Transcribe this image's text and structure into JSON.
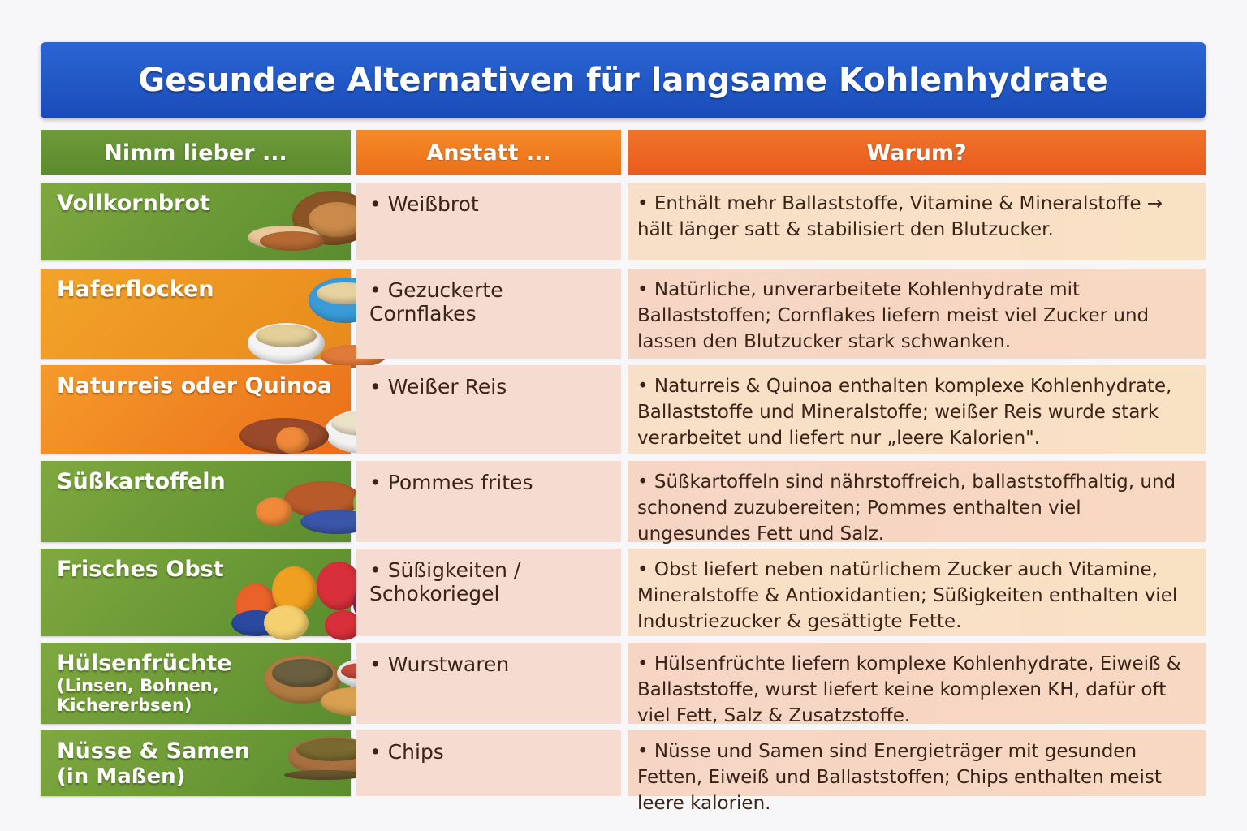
{
  "title": "Gesundere Alternativen für langsame Kohlenhydrate",
  "headers": {
    "prefer": "Nimm lieber ...",
    "instead": "Anstatt ...",
    "why": "Warum?"
  },
  "colors": {
    "title_bar": "#1f55c2",
    "green": "#6a9635",
    "orange": "#ee7a1e"
  },
  "rows": [
    {
      "prefer": "Vollkornbrot",
      "instead": "• Weißbrot",
      "why": "• Enthält mehr Ballaststoffe, Vitamine & Mineralstoffe → hält länger satt & stabilisiert den Blutzucker.",
      "icon": "bread-icon"
    },
    {
      "prefer": "Haferflocken",
      "instead": "• Gezuckerte Cornflakes",
      "why": "• Natürliche, unverarbeitete Kohlenhydrate mit Ballaststoffen; Cornflakes liefern meist viel Zucker und lassen den Blutzucker stark schwanken.",
      "icon": "oat-bowl-icon"
    },
    {
      "prefer": "Naturreis oder Quinoa",
      "instead": "• Weißer Reis",
      "why": "• Naturreis & Quinoa enthalten komplexe Kohlenhydrate, Ballaststoffe und Mineralstoffe; weißer Reis wurde stark verarbeitet und liefert nur „leere Kalorien\".",
      "icon": "rice-bowl-icon"
    },
    {
      "prefer": "Süßkartoffeln",
      "instead": "• Pommes frites",
      "why": "• Süßkartoffeln sind nährstoffreich, ballaststoffhaltig, und schonend zuzubereiten; Pommes enthalten viel ungesundes Fett und Salz.",
      "icon": "sweet-potato-icon"
    },
    {
      "prefer": "Frisches Obst",
      "instead": "• Süßigkeiten / Schokoriegel",
      "why": "• Obst liefert neben natürlichem Zucker auch Vitamine, Mineralstoffe & Antioxidantien; Süßigkeiten enthalten viel Industriezucker & gesättigte Fette.",
      "icon": "fruit-icon"
    },
    {
      "prefer": "Hülsenfrüchte",
      "prefer_sub": "(Linsen, Bohnen, Kichererbsen)",
      "instead": "• Wurstwaren",
      "why": "• Hülsenfrüchte liefern komplexe Kohlenhydrate, Eiweiß & Ballaststoffe, wurst liefert keine komplexen KH, dafür oft viel Fett, Salz & Zusatzstoffe.",
      "icon": "legumes-icon"
    },
    {
      "prefer": "Nüsse & Samen",
      "prefer_sub": "(in Maßen)",
      "instead": "• Chips",
      "why": "• Nüsse und Samen sind Energieträger mit gesunden Fetten, Eiweiß und Ballaststoffen; Chips enthalten meist leere kalorien.",
      "icon": "nuts-icon"
    }
  ]
}
